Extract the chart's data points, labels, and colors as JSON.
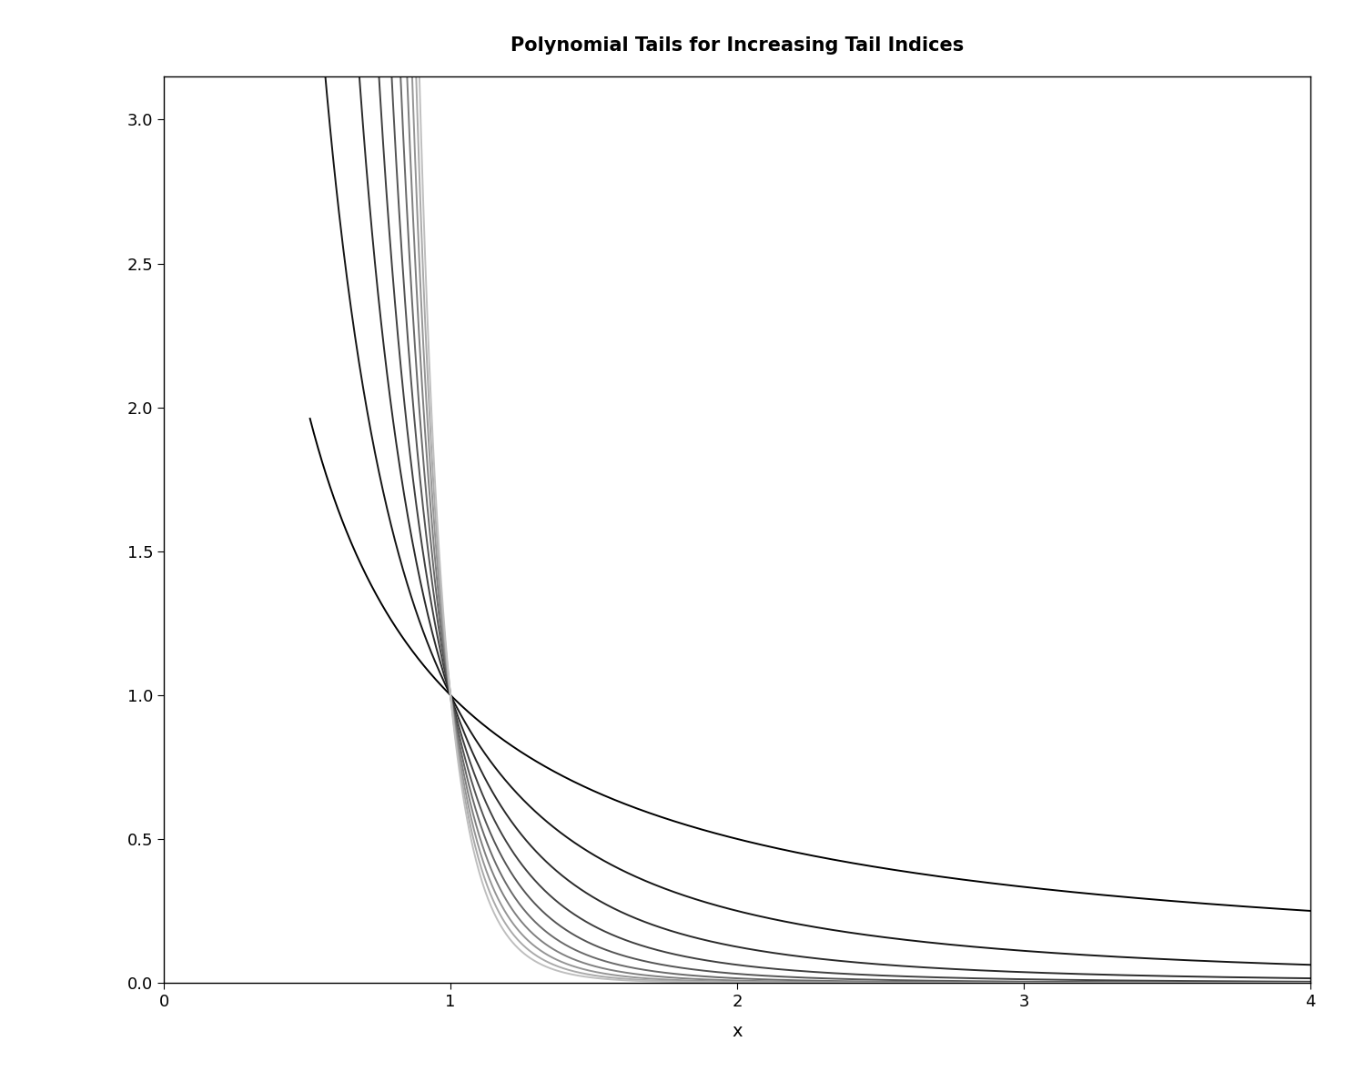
{
  "title": "Polynomial Tails for Increasing Tail Indices",
  "xlabel": "x",
  "ylabel": "",
  "xlim": [
    0,
    4
  ],
  "ylim": [
    0,
    3.15
  ],
  "x_start": 0.51,
  "x_end": 4.0,
  "n_points": 1000,
  "tail_indices": [
    1,
    2,
    3,
    4,
    5,
    6,
    7,
    8,
    9,
    10
  ],
  "yticks": [
    0.0,
    0.5,
    1.0,
    1.5,
    2.0,
    2.5,
    3.0
  ],
  "xticks": [
    0,
    1,
    2,
    3,
    4
  ],
  "background_color": "#ffffff",
  "title_fontsize": 15,
  "axis_fontsize": 14,
  "tick_fontsize": 13,
  "line_width": 1.4
}
